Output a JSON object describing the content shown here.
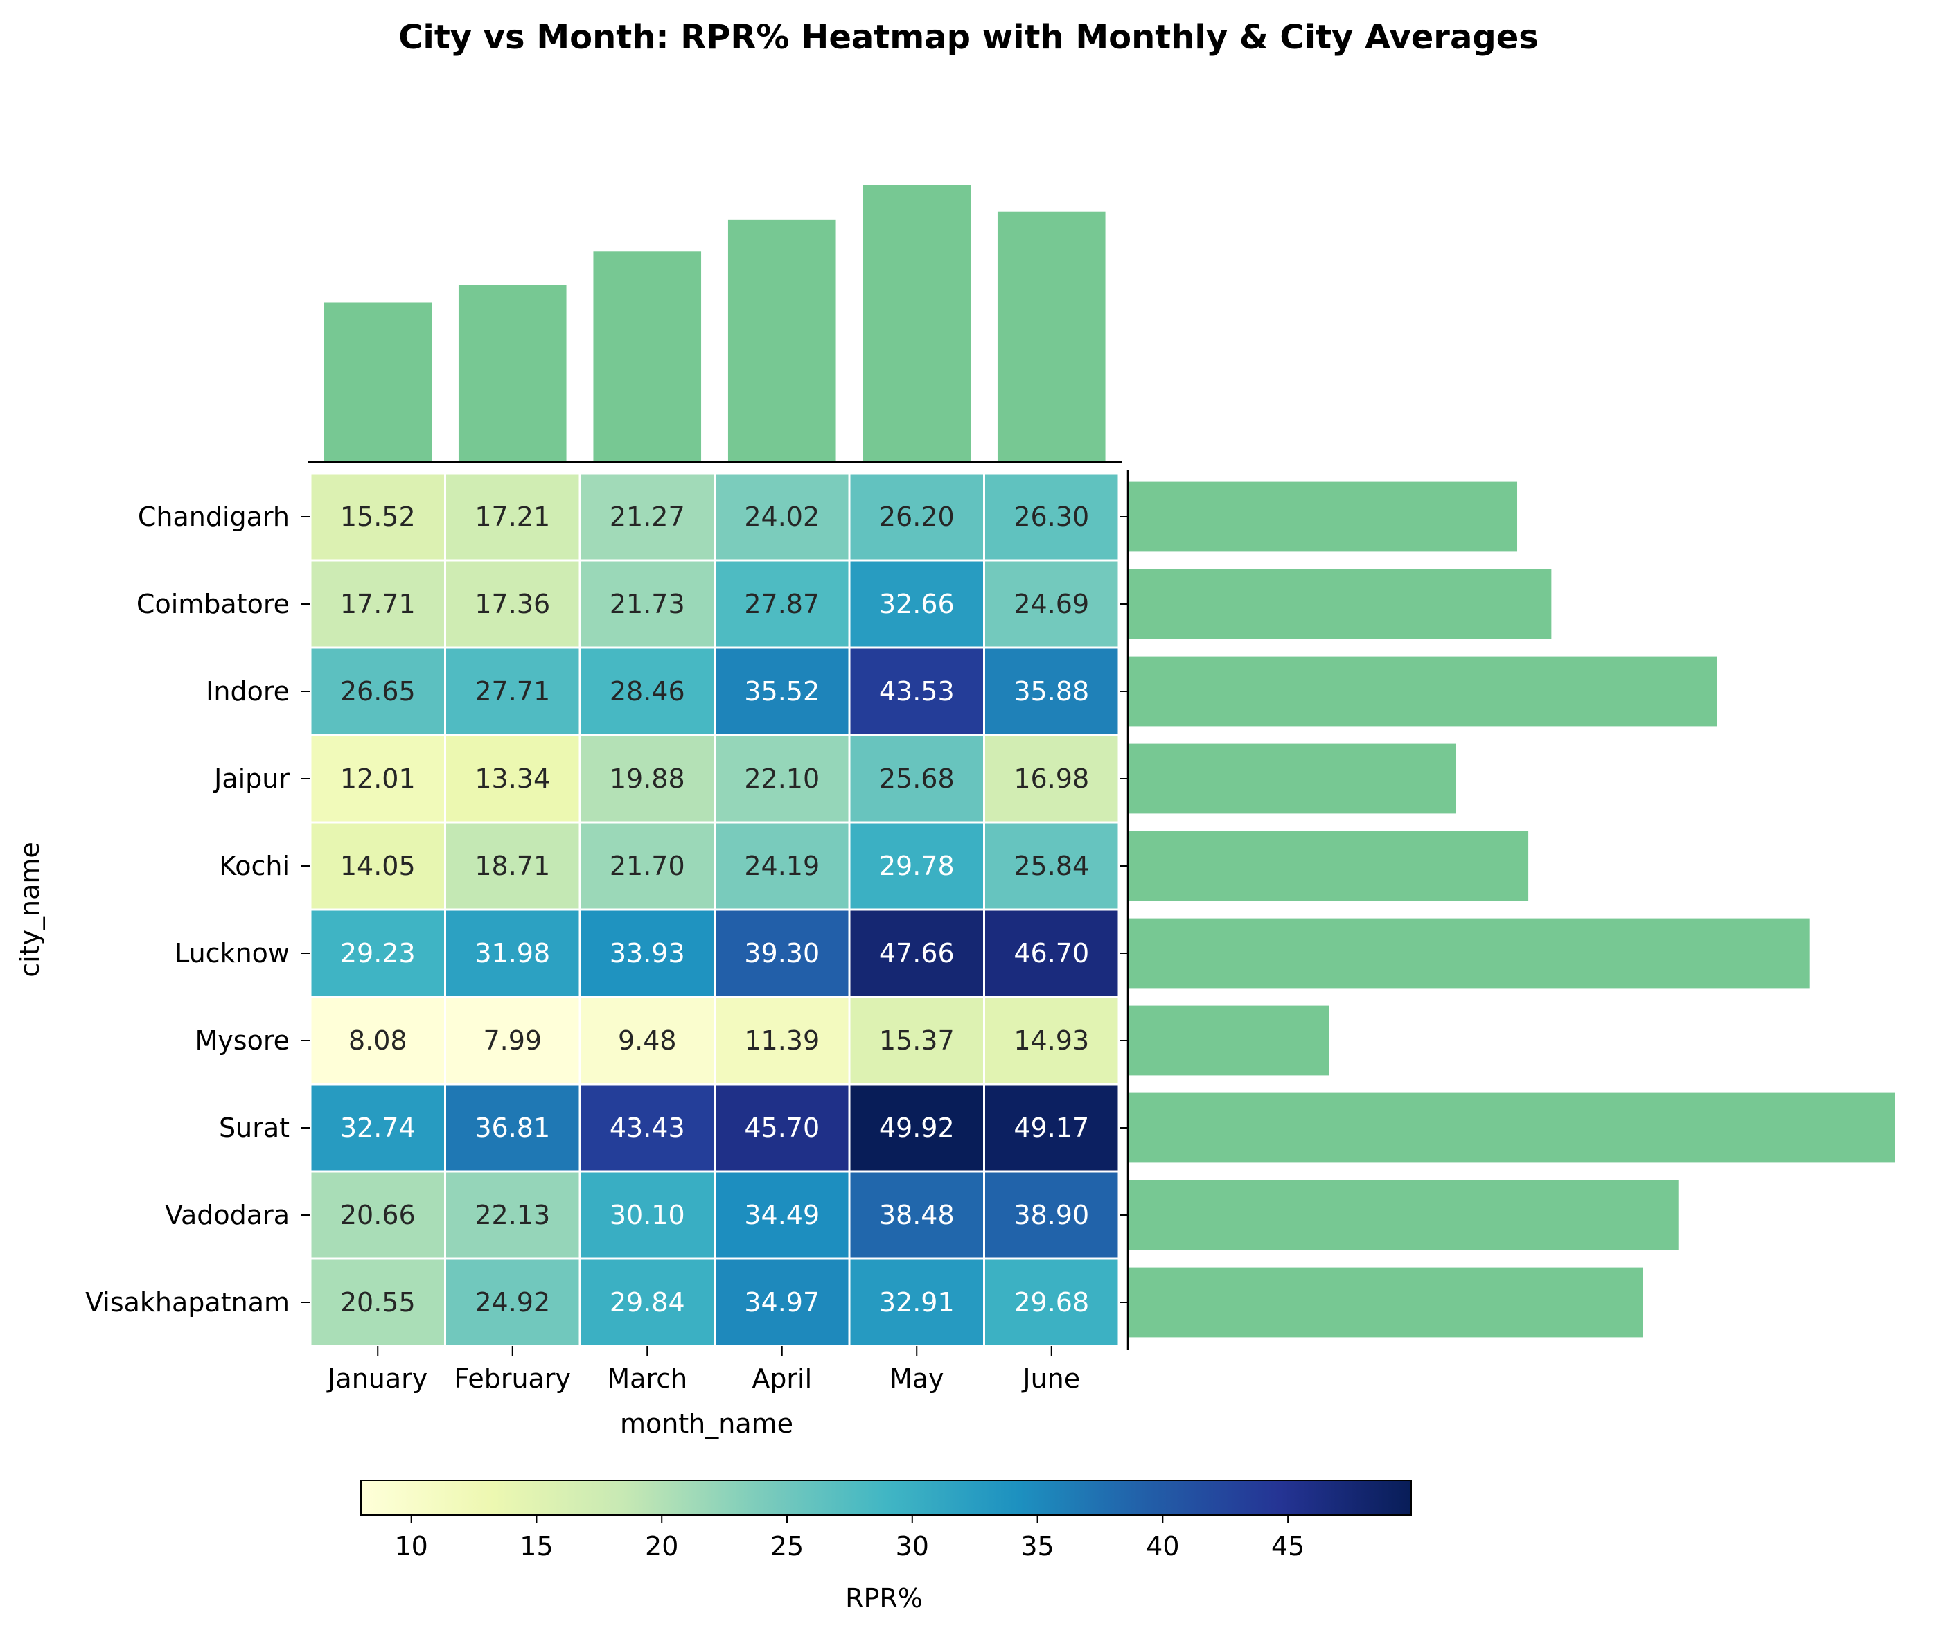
{
  "chart_data": {
    "type": "heatmap",
    "title": "City vs Month: RPR% Heatmap with Monthly & City Averages",
    "xlabel": "month_name",
    "ylabel": "city_name",
    "x_categories": [
      "January",
      "February",
      "March",
      "April",
      "May",
      "June"
    ],
    "y_categories": [
      "Chandigarh",
      "Coimbatore",
      "Indore",
      "Jaipur",
      "Kochi",
      "Lucknow",
      "Mysore",
      "Surat",
      "Vadodara",
      "Visakhapatnam"
    ],
    "values": [
      [
        15.52,
        17.21,
        21.27,
        24.02,
        26.2,
        26.3
      ],
      [
        17.71,
        17.36,
        21.73,
        27.87,
        32.66,
        24.69
      ],
      [
        26.65,
        27.71,
        28.46,
        35.52,
        43.53,
        35.88
      ],
      [
        12.01,
        13.34,
        19.88,
        22.1,
        25.68,
        16.98
      ],
      [
        14.05,
        18.71,
        21.7,
        24.19,
        29.78,
        25.84
      ],
      [
        29.23,
        31.98,
        33.93,
        39.3,
        47.66,
        46.7
      ],
      [
        8.08,
        7.99,
        9.48,
        11.39,
        15.37,
        14.93
      ],
      [
        32.74,
        36.81,
        43.43,
        45.7,
        49.92,
        49.17
      ],
      [
        20.66,
        22.13,
        30.1,
        34.49,
        38.48,
        38.9
      ],
      [
        20.55,
        24.92,
        29.84,
        34.97,
        32.91,
        29.68
      ]
    ],
    "colormap": "YlGnBu",
    "colorbar": {
      "label": "RPR%",
      "range": [
        7.99,
        49.92
      ],
      "ticks": [
        10,
        15,
        20,
        25,
        30,
        35,
        40,
        45
      ]
    },
    "bar_color": "#77c893",
    "grid": false
  }
}
